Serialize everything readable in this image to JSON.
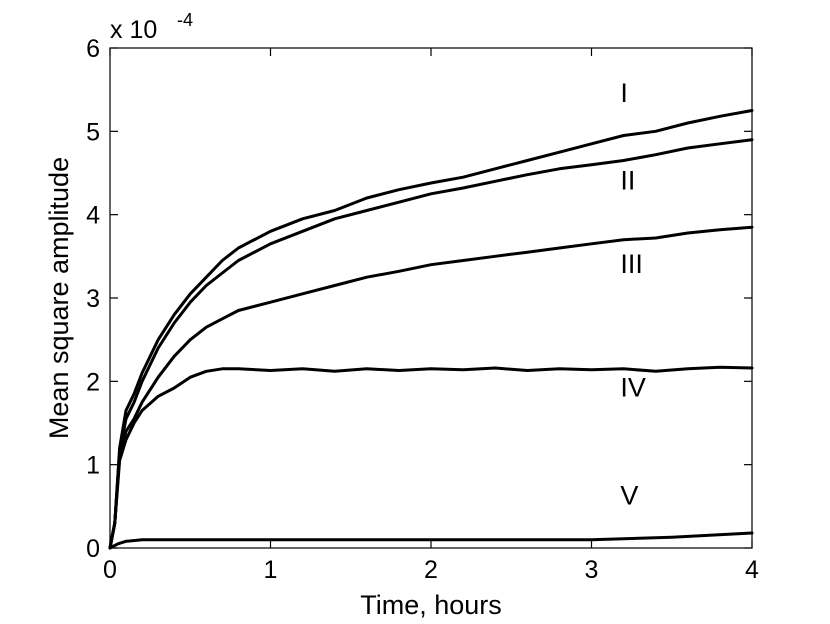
{
  "chart_data": {
    "type": "line",
    "xlabel": "Time, hours",
    "ylabel": "Mean square amplitude",
    "y_multiplier": "x 10",
    "y_multiplier_exponent": "-4",
    "xlim": [
      0,
      4
    ],
    "ylim": [
      0,
      6
    ],
    "xticks": [
      0,
      1,
      2,
      3,
      4
    ],
    "yticks": [
      0,
      1,
      2,
      3,
      4,
      5,
      6
    ],
    "grid": false,
    "line_color": "#000000",
    "series": [
      {
        "name": "I",
        "x": [
          0,
          0.03,
          0.06,
          0.1,
          0.15,
          0.2,
          0.3,
          0.4,
          0.5,
          0.6,
          0.7,
          0.8,
          1.0,
          1.2,
          1.4,
          1.6,
          1.8,
          2.0,
          2.2,
          2.4,
          2.6,
          2.8,
          3.0,
          3.2,
          3.4,
          3.6,
          3.8,
          4.0
        ],
        "y": [
          0,
          0.3,
          1.2,
          1.65,
          1.85,
          2.1,
          2.5,
          2.8,
          3.05,
          3.25,
          3.45,
          3.6,
          3.8,
          3.95,
          4.05,
          4.2,
          4.3,
          4.38,
          4.45,
          4.55,
          4.65,
          4.75,
          4.85,
          4.95,
          5.0,
          5.1,
          5.18,
          5.25
        ]
      },
      {
        "name": "II",
        "x": [
          0,
          0.03,
          0.06,
          0.1,
          0.15,
          0.2,
          0.3,
          0.4,
          0.5,
          0.6,
          0.7,
          0.8,
          1.0,
          1.2,
          1.4,
          1.6,
          1.8,
          2.0,
          2.2,
          2.4,
          2.6,
          2.8,
          3.0,
          3.2,
          3.4,
          3.6,
          3.8,
          4.0
        ],
        "y": [
          0,
          0.3,
          1.15,
          1.55,
          1.75,
          2.0,
          2.4,
          2.7,
          2.95,
          3.15,
          3.3,
          3.45,
          3.65,
          3.8,
          3.95,
          4.05,
          4.15,
          4.25,
          4.32,
          4.4,
          4.48,
          4.55,
          4.6,
          4.65,
          4.72,
          4.8,
          4.85,
          4.9
        ]
      },
      {
        "name": "III",
        "x": [
          0,
          0.03,
          0.06,
          0.1,
          0.15,
          0.2,
          0.3,
          0.4,
          0.5,
          0.6,
          0.7,
          0.8,
          1.0,
          1.2,
          1.4,
          1.6,
          1.8,
          2.0,
          2.2,
          2.4,
          2.6,
          2.8,
          3.0,
          3.2,
          3.4,
          3.6,
          3.8,
          4.0
        ],
        "y": [
          0,
          0.3,
          1.1,
          1.4,
          1.55,
          1.75,
          2.05,
          2.3,
          2.5,
          2.65,
          2.75,
          2.85,
          2.95,
          3.05,
          3.15,
          3.25,
          3.32,
          3.4,
          3.45,
          3.5,
          3.55,
          3.6,
          3.65,
          3.7,
          3.72,
          3.78,
          3.82,
          3.85
        ]
      },
      {
        "name": "IV",
        "x": [
          0,
          0.03,
          0.06,
          0.1,
          0.15,
          0.2,
          0.3,
          0.4,
          0.5,
          0.6,
          0.7,
          0.8,
          1.0,
          1.2,
          1.4,
          1.6,
          1.8,
          2.0,
          2.2,
          2.4,
          2.6,
          2.8,
          3.0,
          3.2,
          3.4,
          3.6,
          3.8,
          4.0
        ],
        "y": [
          0,
          0.3,
          1.05,
          1.3,
          1.5,
          1.65,
          1.82,
          1.92,
          2.05,
          2.12,
          2.15,
          2.15,
          2.13,
          2.15,
          2.12,
          2.15,
          2.13,
          2.15,
          2.14,
          2.16,
          2.13,
          2.15,
          2.14,
          2.15,
          2.12,
          2.15,
          2.17,
          2.16
        ]
      },
      {
        "name": "V",
        "x": [
          0,
          0.05,
          0.1,
          0.2,
          0.5,
          1.0,
          1.5,
          2.0,
          2.5,
          3.0,
          3.5,
          4.0
        ],
        "y": [
          0,
          0.05,
          0.08,
          0.1,
          0.1,
          0.1,
          0.1,
          0.1,
          0.1,
          0.1,
          0.13,
          0.18
        ]
      }
    ],
    "series_labels": [
      {
        "text": "I",
        "x": 3.18,
        "y": 5.35
      },
      {
        "text": "II",
        "x": 3.18,
        "y": 4.3
      },
      {
        "text": "III",
        "x": 3.18,
        "y": 3.3
      },
      {
        "text": "IV",
        "x": 3.18,
        "y": 1.82
      },
      {
        "text": "V",
        "x": 3.18,
        "y": 0.52
      }
    ]
  }
}
